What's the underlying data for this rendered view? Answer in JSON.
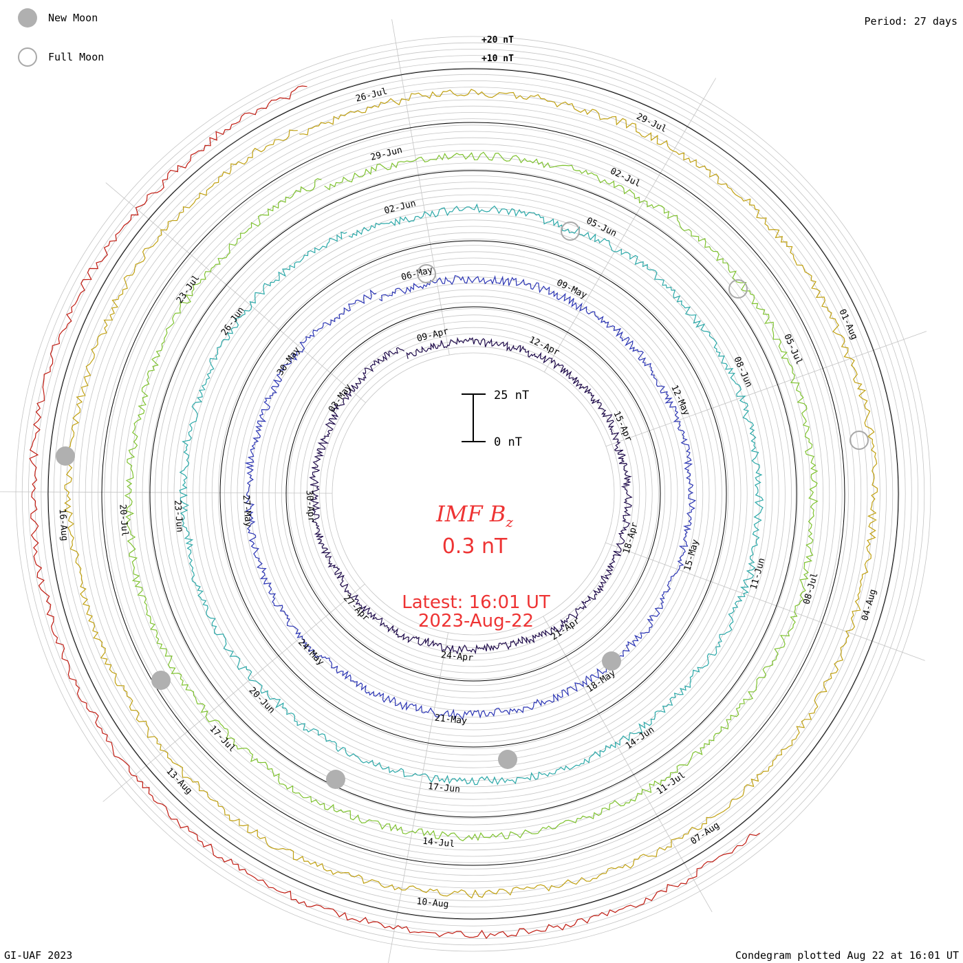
{
  "legend": {
    "new_moon_label": "New Moon",
    "full_moon_label": "Full Moon",
    "new_moon_color": "#b0b0b0",
    "full_moon_color": "#a9a9a9"
  },
  "header": {
    "period": "Period: 27 days"
  },
  "footer": {
    "credit": "GI-UAF 2023",
    "plotted": "Condegram plotted Aug 22 at 16:01 UT"
  },
  "center": {
    "title_main": "IMF B",
    "title_sub": "z",
    "value": "0.3 nT",
    "latest": "Latest: 16:01 UT",
    "date": "2023-Aug-22",
    "text_color": "#ee3333",
    "scale_top": "25 nT",
    "scale_bottom": "0 nT"
  },
  "chart_data": {
    "type": "line",
    "title": "IMF Bz",
    "period_days": 27,
    "scale_labels": [
      "+20 nT",
      "+10 nT"
    ],
    "rings": [
      {
        "name": "ring-1",
        "color": "#1e0a4a",
        "ticks": [
          "09-Apr",
          "12-Apr",
          "15-Apr",
          "18-Apr",
          "21-Apr",
          "24-Apr",
          "27-Apr",
          "30-Apr",
          "03-May"
        ]
      },
      {
        "name": "ring-2",
        "color": "#2a34b4",
        "ticks": [
          "06-May",
          "09-May",
          "12-May",
          "15-May",
          "18-May",
          "21-May",
          "24-May",
          "27-May",
          "30-May"
        ]
      },
      {
        "name": "ring-3",
        "color": "#2aa8a8",
        "ticks": [
          "02-Jun",
          "05-Jun",
          "08-Jun",
          "11-Jun",
          "14-Jun",
          "17-Jun",
          "20-Jun",
          "23-Jun",
          "26-Jun"
        ]
      },
      {
        "name": "ring-4",
        "color": "#7ec22e",
        "ticks": [
          "29-Jun",
          "02-Jul",
          "05-Jul",
          "08-Jul",
          "11-Jul",
          "14-Jul",
          "17-Jul",
          "20-Jul",
          "23-Jul"
        ]
      },
      {
        "name": "ring-5",
        "color": "#c0a010",
        "ticks": [
          "26-Jul",
          "29-Jul",
          "01-Aug",
          "04-Aug",
          "07-Aug",
          "10-Aug",
          "13-Aug",
          "16-Aug"
        ]
      },
      {
        "name": "ring-6",
        "color": "#c01a10",
        "ticks": []
      }
    ]
  }
}
